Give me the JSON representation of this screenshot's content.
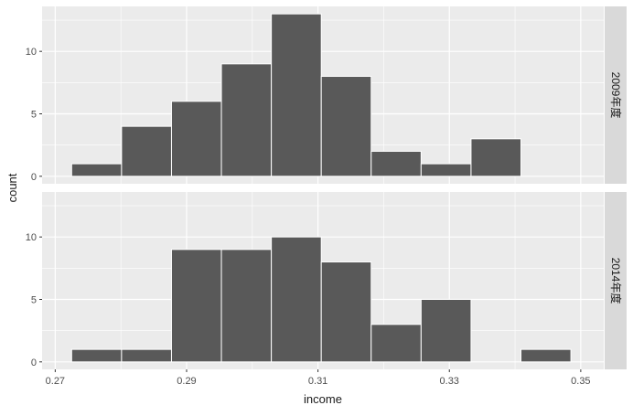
{
  "chart_data": {
    "type": "bar",
    "subtype": "histogram-faceted",
    "xlabel": "income",
    "ylabel": "count",
    "xlim": [
      0.268,
      0.3535
    ],
    "ylim": [
      -0.6,
      13.6
    ],
    "x_ticks": [
      {
        "value": 0.27,
        "label": "0.27"
      },
      {
        "value": 0.29,
        "label": "0.29"
      },
      {
        "value": 0.31,
        "label": "0.31"
      },
      {
        "value": 0.33,
        "label": "0.33"
      },
      {
        "value": 0.35,
        "label": "0.35"
      }
    ],
    "y_ticks": [
      {
        "value": 0,
        "label": "0"
      },
      {
        "value": 5,
        "label": "5"
      },
      {
        "value": 10,
        "label": "10"
      }
    ],
    "grid": true,
    "colors": {
      "panel_bg": "#ebebeb",
      "grid": "#ffffff",
      "bar_fill": "#595959",
      "bar_outline": "#ffffff",
      "strip_bg": "#d9d9d9"
    },
    "bin_edges": [
      0.2725,
      0.2801,
      0.2877,
      0.2953,
      0.3029,
      0.3105,
      0.3181,
      0.3257,
      0.3333,
      0.3409,
      0.3485
    ],
    "facets": [
      {
        "label": "2009年度",
        "counts": [
          1,
          4,
          6,
          9,
          13,
          8,
          2,
          1,
          3,
          0
        ]
      },
      {
        "label": "2014年度",
        "counts": [
          1,
          1,
          9,
          9,
          10,
          8,
          3,
          5,
          0,
          1
        ]
      }
    ]
  }
}
